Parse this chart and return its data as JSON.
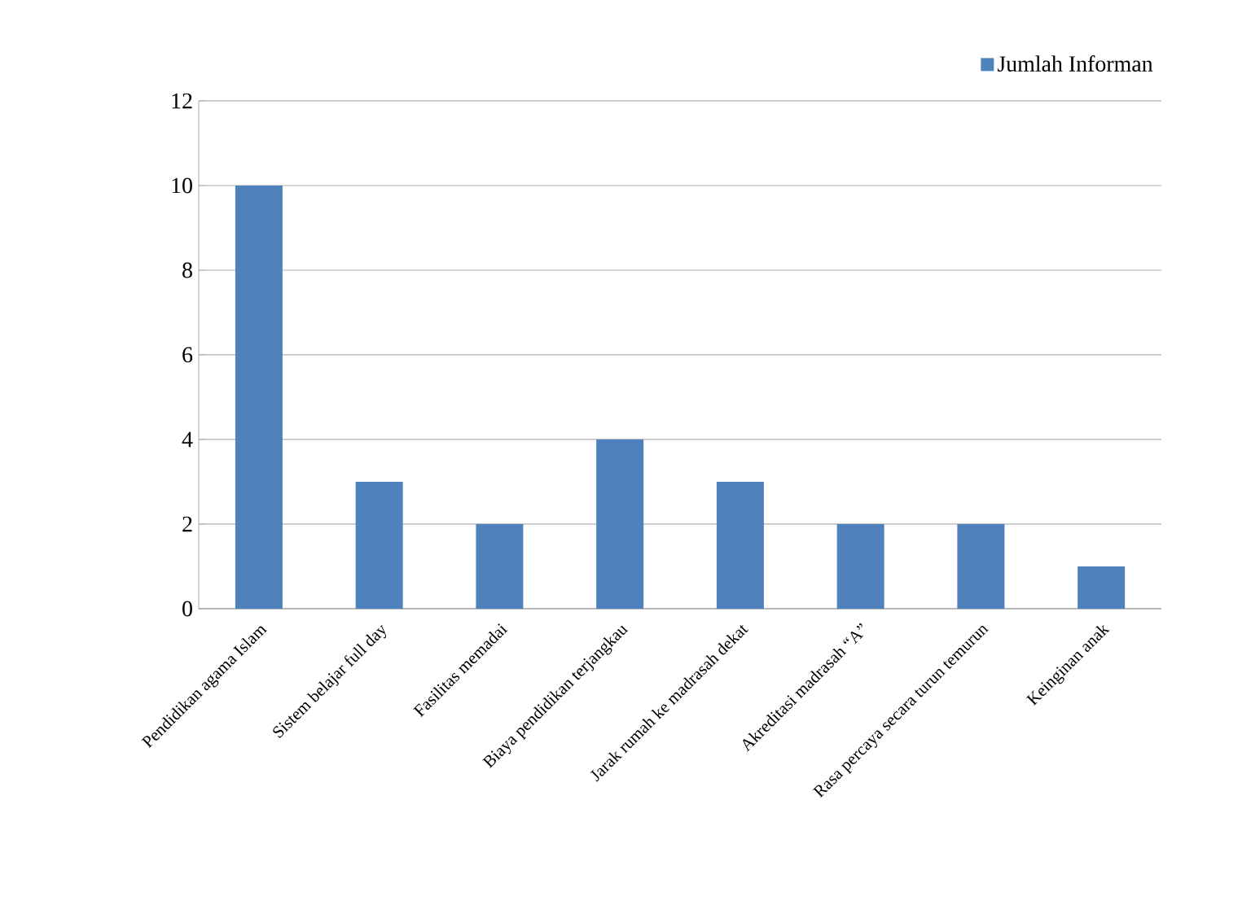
{
  "chart_data": {
    "type": "bar",
    "categories": [
      "Pendidikan agama Islam",
      "Sistem belajar full day",
      "Fasilitas memadai",
      "Biaya pendidikan terjangkau",
      "Jarak rumah ke madrasah dekat",
      "Akreditasi madrasah “A”",
      "Rasa percaya secara turun temurun",
      "Keinginan anak"
    ],
    "series": [
      {
        "name": "Jumlah Informan",
        "color": "#4f81bd",
        "values": [
          10,
          3,
          2,
          4,
          3,
          2,
          2,
          1
        ]
      }
    ],
    "ylim": [
      0,
      12
    ],
    "yticks": [
      0,
      2,
      4,
      6,
      8,
      10,
      12
    ],
    "grid": "y",
    "legend": "top right"
  }
}
